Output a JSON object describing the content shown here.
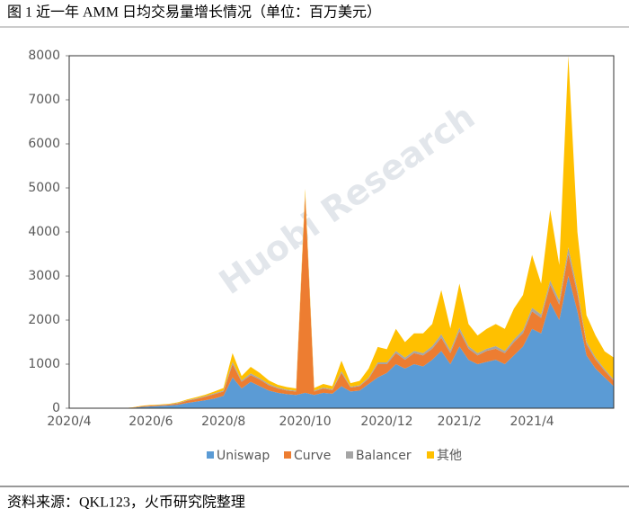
{
  "chart_data": {
    "type": "stacked_area",
    "title": "图 1 近一年 AMM 日均交易量增长情况（单位：百万美元）",
    "source": "资料来源：QKL123，火币研究院整理",
    "watermark": "Huobi Research",
    "categories": [
      "2020/4",
      null,
      null,
      null,
      null,
      null,
      null,
      null,
      null,
      "2020/6",
      null,
      null,
      null,
      null,
      null,
      null,
      null,
      "2020/8",
      null,
      null,
      null,
      null,
      null,
      null,
      null,
      null,
      "2020/10",
      null,
      null,
      null,
      null,
      null,
      null,
      null,
      null,
      "2020/12",
      null,
      null,
      null,
      null,
      null,
      null,
      null,
      "2021/2",
      null,
      null,
      null,
      null,
      null,
      null,
      null,
      "2021/4",
      null,
      null,
      null,
      null,
      null,
      null,
      null,
      null,
      null
    ],
    "series": [
      {
        "name": "Uniswap",
        "color": "#5b9bd5",
        "values": [
          0,
          0,
          0,
          0,
          0,
          0,
          0,
          10,
          30,
          40,
          50,
          60,
          80,
          120,
          150,
          180,
          220,
          280,
          700,
          450,
          600,
          500,
          400,
          350,
          320,
          300,
          350,
          300,
          350,
          330,
          500,
          380,
          400,
          550,
          700,
          800,
          1000,
          900,
          1000,
          950,
          1100,
          1300,
          1000,
          1400,
          1100,
          1000,
          1050,
          1100,
          1000,
          1200,
          1400,
          1800,
          1700,
          2400,
          2000,
          3000,
          2200,
          1200,
          900,
          700,
          500
        ]
      },
      {
        "name": "Curve",
        "color": "#ed7d31",
        "values": [
          0,
          0,
          0,
          0,
          0,
          0,
          0,
          5,
          15,
          20,
          20,
          25,
          30,
          50,
          60,
          80,
          100,
          100,
          300,
          150,
          150,
          150,
          120,
          100,
          80,
          80,
          4500,
          80,
          100,
          80,
          300,
          90,
          100,
          120,
          300,
          200,
          250,
          200,
          250,
          250,
          250,
          300,
          250,
          350,
          250,
          200,
          250,
          250,
          250,
          300,
          300,
          400,
          350,
          400,
          350,
          500,
          400,
          250,
          200,
          150,
          120
        ]
      },
      {
        "name": "Balancer",
        "color": "#a5a5a5",
        "values": [
          0,
          0,
          0,
          0,
          0,
          0,
          0,
          0,
          2,
          3,
          5,
          5,
          10,
          10,
          15,
          15,
          20,
          20,
          50,
          30,
          40,
          30,
          30,
          20,
          20,
          20,
          30,
          20,
          20,
          20,
          40,
          20,
          20,
          30,
          40,
          40,
          50,
          50,
          50,
          50,
          60,
          80,
          60,
          80,
          60,
          50,
          50,
          60,
          50,
          60,
          70,
          80,
          80,
          100,
          100,
          150,
          100,
          60,
          50,
          40,
          30
        ]
      },
      {
        "name": "其他",
        "color": "#ffc000",
        "values": [
          0,
          0,
          0,
          0,
          0,
          0,
          0,
          5,
          10,
          10,
          10,
          10,
          15,
          20,
          25,
          30,
          40,
          60,
          200,
          100,
          150,
          120,
          80,
          60,
          60,
          50,
          100,
          60,
          80,
          70,
          240,
          80,
          100,
          200,
          350,
          300,
          500,
          350,
          400,
          450,
          500,
          1000,
          500,
          1000,
          500,
          400,
          450,
          500,
          500,
          700,
          800,
          1200,
          700,
          1600,
          800,
          4350,
          1300,
          600,
          500,
          400,
          500
        ]
      }
    ],
    "ylim": [
      0,
      8000
    ],
    "yticks": [
      0,
      1000,
      2000,
      3000,
      4000,
      5000,
      6000,
      7000,
      8000
    ],
    "legend": "bottom"
  }
}
